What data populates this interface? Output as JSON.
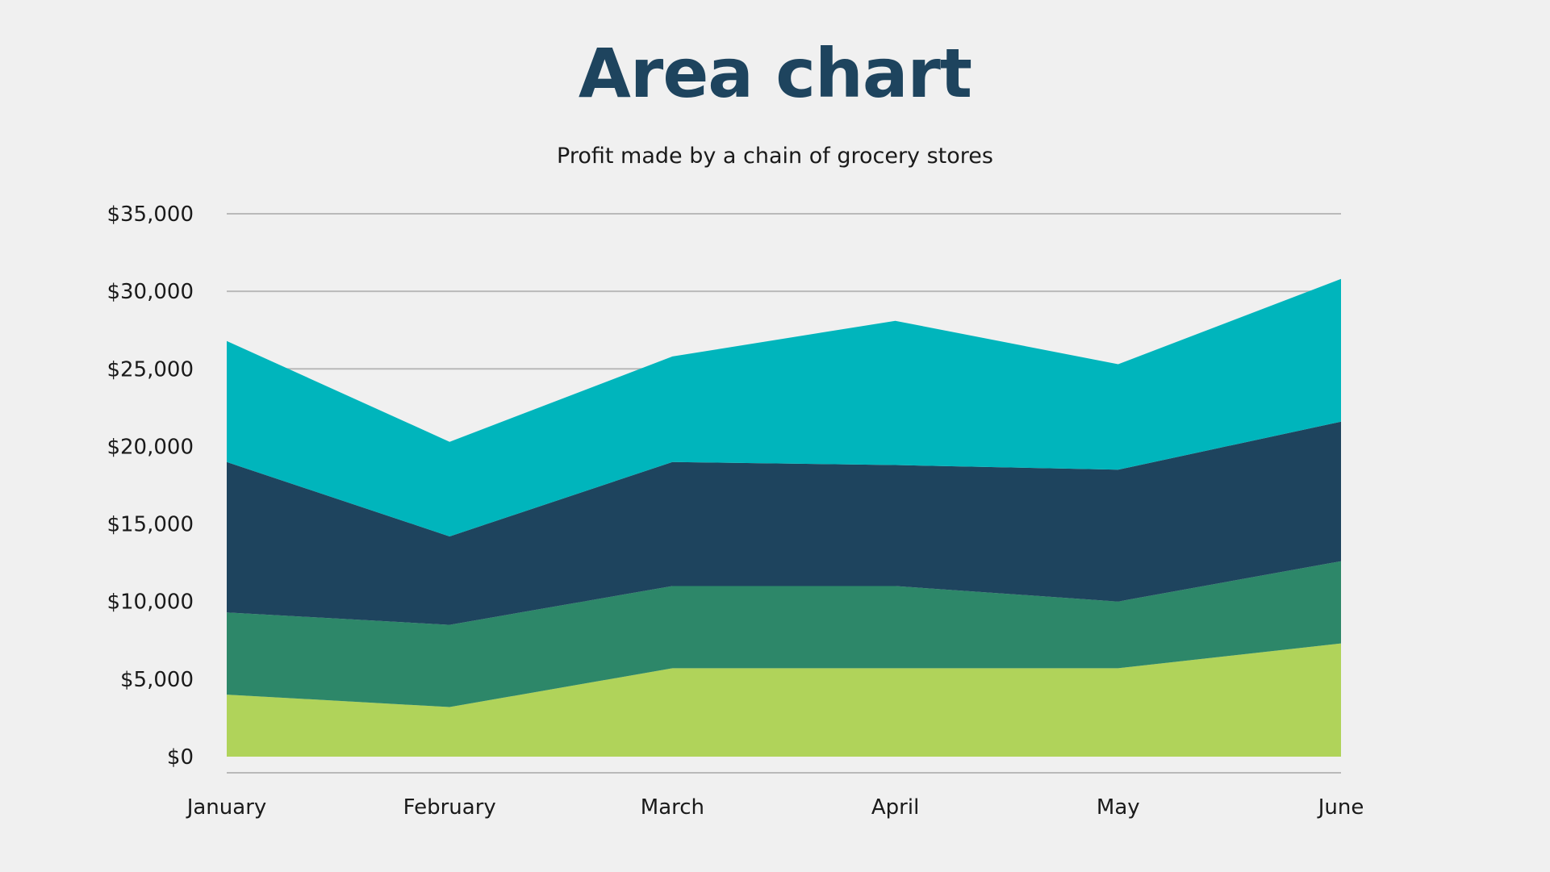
{
  "chart_data": {
    "type": "area",
    "stacked": true,
    "title": "Area chart",
    "subtitle": "Profit made by a chain of grocery stores",
    "xlabel": "",
    "ylabel": "",
    "categories": [
      "January",
      "February",
      "March",
      "April",
      "May",
      "June"
    ],
    "yticks": [
      "$0",
      "$5,000",
      "$10,000",
      "$15,000",
      "$20,000",
      "$25,000",
      "$30,000",
      "$35,000"
    ],
    "ylim": [
      0,
      35000
    ],
    "grid": true,
    "legend": "none",
    "series": [
      {
        "values": [
          4000,
          3200,
          5700,
          5700,
          5700,
          7300
        ],
        "color": "#b0d35a"
      },
      {
        "values": [
          5300,
          5300,
          5300,
          5300,
          4300,
          5300
        ],
        "color": "#2d8769"
      },
      {
        "values": [
          9700,
          5700,
          8000,
          7800,
          8500,
          9000
        ],
        "color": "#1e445e"
      },
      {
        "values": [
          7800,
          6100,
          6800,
          9300,
          6800,
          9200
        ],
        "color": "#00b5bc"
      }
    ]
  }
}
